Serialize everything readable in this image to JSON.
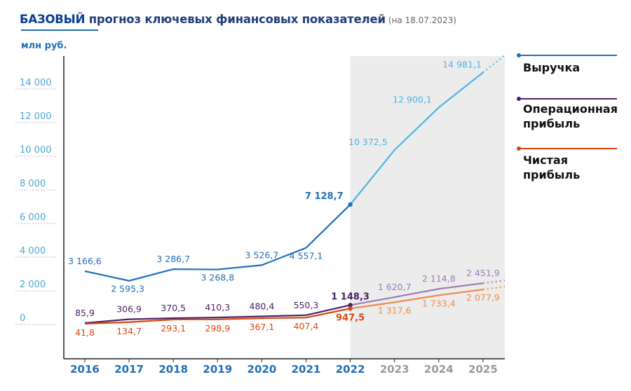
{
  "title": {
    "highlight": "БАЗОВЫЙ",
    "rest": "прогноз ключевых финансовых показателей",
    "date": "(на 18.07.2023)"
  },
  "unit_label": "млн руб.",
  "legend": {
    "revenue": "Выручка",
    "op_line1": "Операционная",
    "op_line2": "прибыль",
    "net_line1": "Чистая",
    "net_line2": "прибыль"
  },
  "colors": {
    "revenue_actual": "#1f6fb8",
    "revenue_forecast": "#4db3e6",
    "op_actual": "#4b2167",
    "op_forecast": "#9a7cb4",
    "net_actual": "#d9480f",
    "net_forecast": "#ee8a4a",
    "forecast_bg": "#ececec",
    "axis_text": "#4aa8d8",
    "year_actual": "#1f6fb8",
    "year_forecast": "#9a9a9a"
  },
  "chart_data": {
    "type": "line",
    "categories": [
      "2016",
      "2017",
      "2018",
      "2019",
      "2020",
      "2021",
      "2022",
      "2023",
      "2024",
      "2025"
    ],
    "forecast_from": "2022",
    "ylim": [
      -2000,
      16000
    ],
    "yticks": [
      0,
      2000,
      4000,
      6000,
      8000,
      10000,
      12000,
      14000
    ],
    "ytick_labels": [
      "0",
      "2 000",
      "4 000",
      "6 000",
      "8 000",
      "10 000",
      "12 000",
      "14 000"
    ],
    "series": [
      {
        "name": "Выручка",
        "values": [
          3166.6,
          2595.3,
          3286.7,
          3268.8,
          3526.7,
          4557.1,
          7128.7,
          10372.5,
          12900.1,
          14981.1
        ],
        "labels": [
          "3 166,6",
          "2 595,3",
          "3 286,7",
          "3 268,8",
          "3 526,7",
          "4 557,1",
          "7 128,7",
          "10 372,5",
          "12 900,1",
          "14 981,1"
        ]
      },
      {
        "name": "Операционная прибыль",
        "values": [
          85.9,
          306.9,
          370.5,
          410.3,
          480.4,
          550.3,
          1148.3,
          1620.7,
          2114.8,
          2451.9
        ],
        "labels": [
          "85,9",
          "306,9",
          "370,5",
          "410,3",
          "480,4",
          "550,3",
          "1 148,3",
          "1 620,7",
          "2 114,8",
          "2 451,9"
        ]
      },
      {
        "name": "Чистая прибыль",
        "values": [
          41.8,
          134.7,
          293.1,
          298.9,
          367.1,
          407.4,
          947.5,
          1317.6,
          1733.4,
          2077.9
        ],
        "labels": [
          "41,8",
          "134,7",
          "293,1",
          "298,9",
          "367,1",
          "407,4",
          "947,5",
          "1 317,6",
          "1 733,4",
          "2 077,9"
        ]
      }
    ],
    "grid": false,
    "legend_position": "right"
  }
}
